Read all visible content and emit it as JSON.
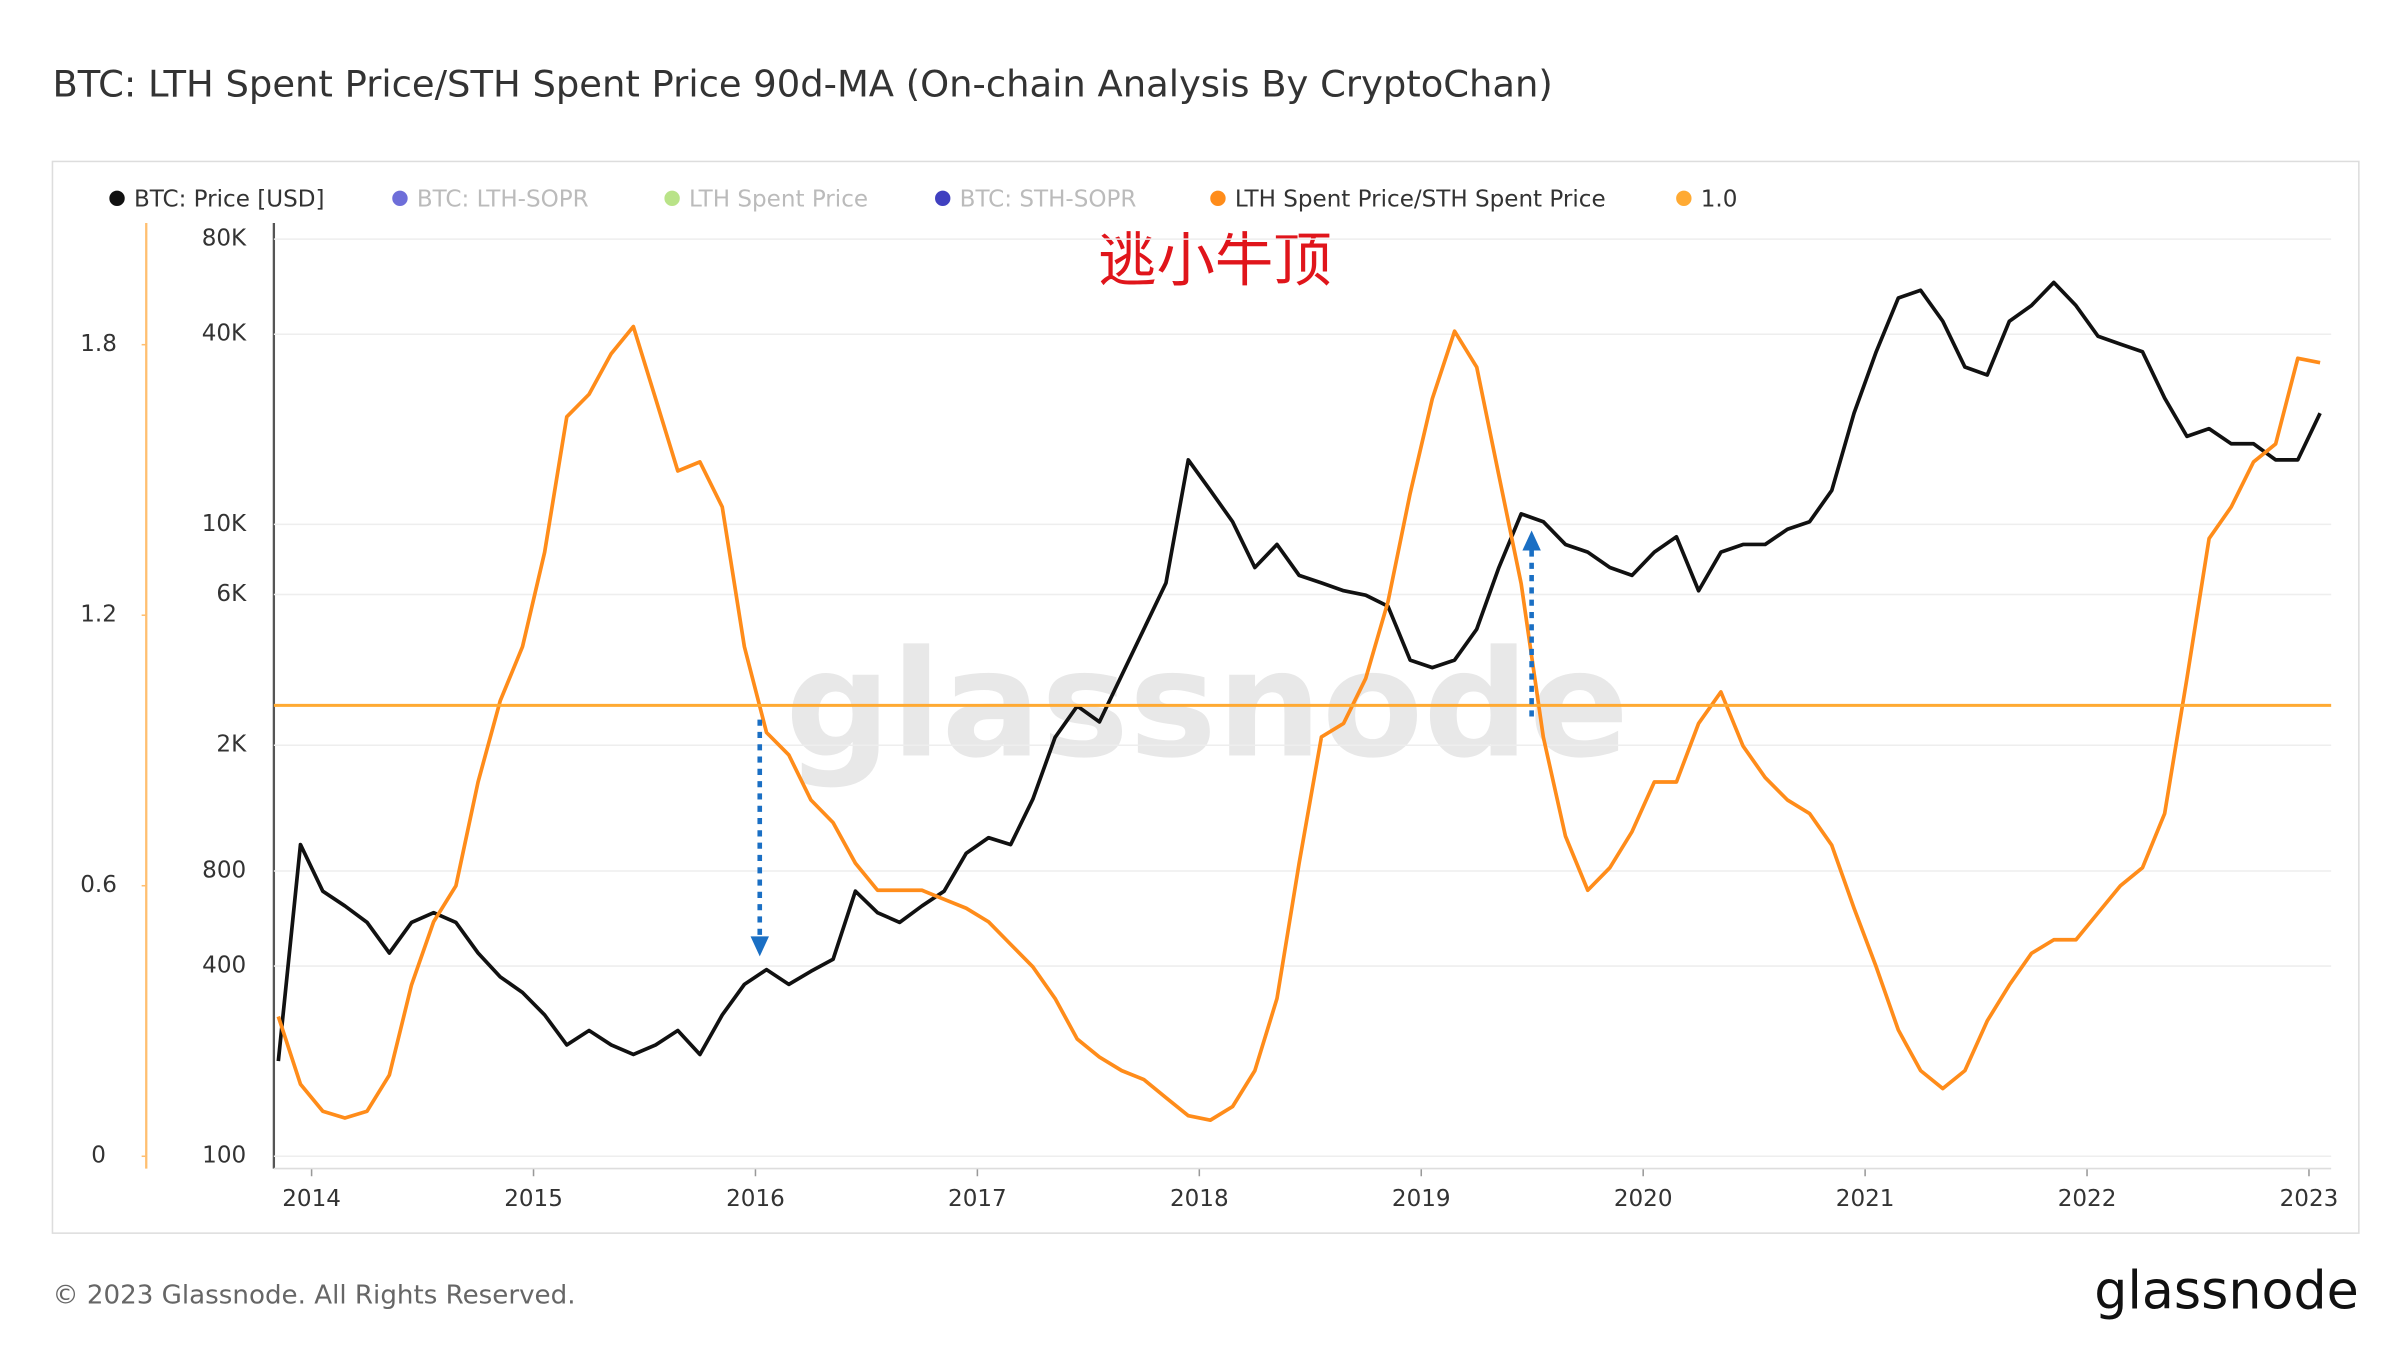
{
  "chart_data": {
    "type": "line",
    "title": "BTC: LTH Spent Price/STH Spent Price 90d-MA (On-chain Analysis By CryptoChan)",
    "annotation": "逃小牛顶",
    "watermark": "glassnode",
    "footer": "© 2023 Glassnode. All Rights Reserved.",
    "logo": "glassnode",
    "x": [
      2013.85,
      2013.95,
      2014.05,
      2014.15,
      2014.25,
      2014.35,
      2014.45,
      2014.55,
      2014.65,
      2014.75,
      2014.85,
      2014.95,
      2015.05,
      2015.15,
      2015.25,
      2015.35,
      2015.45,
      2015.55,
      2015.65,
      2015.75,
      2015.85,
      2015.95,
      2016.05,
      2016.15,
      2016.25,
      2016.35,
      2016.45,
      2016.55,
      2016.65,
      2016.75,
      2016.85,
      2016.95,
      2017.05,
      2017.15,
      2017.25,
      2017.35,
      2017.45,
      2017.55,
      2017.65,
      2017.75,
      2017.85,
      2017.95,
      2018.05,
      2018.15,
      2018.25,
      2018.35,
      2018.45,
      2018.55,
      2018.65,
      2018.75,
      2018.85,
      2018.95,
      2019.05,
      2019.15,
      2019.25,
      2019.35,
      2019.45,
      2019.55,
      2019.65,
      2019.75,
      2019.85,
      2019.95,
      2020.05,
      2020.15,
      2020.25,
      2020.35,
      2020.45,
      2020.55,
      2020.65,
      2020.75,
      2020.85,
      2020.95,
      2021.05,
      2021.15,
      2021.25,
      2021.35,
      2021.45,
      2021.55,
      2021.65,
      2021.75,
      2021.85,
      2021.95,
      2022.05,
      2022.15,
      2022.25,
      2022.35,
      2022.45,
      2022.55,
      2022.65,
      2022.75,
      2022.85,
      2022.95,
      2023.05
    ],
    "xlim": [
      2013.83,
      2023.1
    ],
    "xticks": [
      2014,
      2015,
      2016,
      2017,
      2018,
      2019,
      2020,
      2021,
      2022,
      2023
    ],
    "ylim": [
      0,
      2.07
    ],
    "yticks": [
      0,
      0.6,
      1.2,
      1.8
    ],
    "y2lim": [
      100,
      90000
    ],
    "y2_log": true,
    "y2ticks": [
      100,
      400,
      800,
      {
        "value": 2000,
        "label": "2K"
      },
      {
        "value": 6000,
        "label": "6K"
      },
      {
        "value": 10000,
        "label": "10K"
      },
      {
        "value": 40000,
        "label": "40K"
      },
      {
        "value": 80000,
        "label": "80K"
      }
    ],
    "grid": true,
    "legend": "top-left",
    "series": [
      {
        "name": "BTC: Price [USD]",
        "color": "#111111",
        "axis": "y2",
        "values": [
          200,
          970,
          690,
          620,
          550,
          440,
          550,
          590,
          550,
          440,
          370,
          330,
          280,
          225,
          250,
          225,
          210,
          225,
          250,
          210,
          280,
          350,
          390,
          350,
          385,
          420,
          690,
          590,
          550,
          620,
          690,
          910,
          1020,
          970,
          1350,
          2120,
          2660,
          2370,
          3330,
          4660,
          6530,
          16000,
          12800,
          10200,
          7300,
          8640,
          6900,
          6530,
          6170,
          5970,
          5510,
          3720,
          3520,
          3720,
          4660,
          7300,
          10800,
          10200,
          8640,
          8170,
          7300,
          6900,
          8170,
          9140,
          6170,
          8170,
          8640,
          8640,
          9660,
          10200,
          12800,
          22500,
          35200,
          52100,
          55100,
          44000,
          31500,
          29700,
          44000,
          49300,
          58300,
          49300,
          39400,
          37200,
          35200,
          25100,
          19000,
          20100,
          18000,
          18000,
          16000,
          16000,
          22500
        ]
      },
      {
        "name": "BTC: LTH-SOPR",
        "color": "#4a4ad0",
        "visible": false
      },
      {
        "name": "LTH Spent Price",
        "color": "#a8dc6a",
        "visible": false
      },
      {
        "name": "BTC: STH-SOPR",
        "color": "#1010b0",
        "visible": false
      },
      {
        "name": "LTH Spent Price/STH Spent Price",
        "color": "#ff8c1a",
        "values": [
          0.31,
          0.16,
          0.1,
          0.085,
          0.1,
          0.18,
          0.38,
          0.52,
          0.6,
          0.83,
          1.01,
          1.13,
          1.34,
          1.64,
          1.69,
          1.78,
          1.84,
          1.68,
          1.52,
          1.54,
          1.44,
          1.13,
          0.94,
          0.89,
          0.79,
          0.74,
          0.65,
          0.59,
          0.59,
          0.59,
          0.57,
          0.55,
          0.52,
          0.47,
          0.42,
          0.35,
          0.26,
          0.22,
          0.19,
          0.17,
          0.13,
          0.09,
          0.08,
          0.11,
          0.19,
          0.35,
          0.65,
          0.93,
          0.96,
          1.06,
          1.23,
          1.47,
          1.68,
          1.83,
          1.75,
          1.51,
          1.27,
          0.93,
          0.71,
          0.59,
          0.64,
          0.72,
          0.83,
          0.83,
          0.96,
          1.03,
          0.91,
          0.84,
          0.79,
          0.76,
          0.69,
          0.55,
          0.42,
          0.28,
          0.19,
          0.15,
          0.19,
          0.3,
          0.38,
          0.45,
          0.48,
          0.48,
          0.54,
          0.6,
          0.64,
          0.76,
          1.06,
          1.37,
          1.44,
          1.54,
          1.58,
          1.77,
          1.76
        ]
      },
      {
        "name": "1.0",
        "color": "#ffaa33",
        "line": "horizontal",
        "value": 1
      }
    ]
  }
}
